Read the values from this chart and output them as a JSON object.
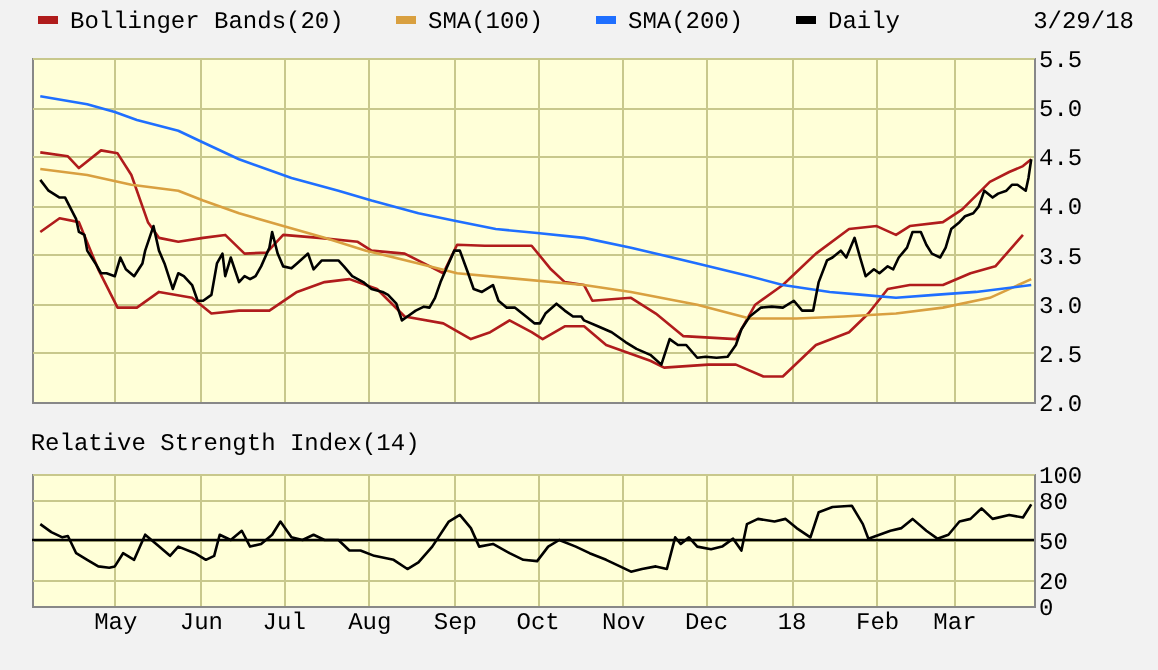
{
  "chart_data": [
    {
      "type": "line",
      "legend": "top",
      "grid": true,
      "tick_labels": "y",
      "annotations": [
        "3/29/18"
      ],
      "xlim": [
        "2017-04-01",
        "2018-03-30"
      ],
      "xticks": [
        {
          "value": "2017-05-01",
          "label": null
        },
        {
          "value": "2017-06-01",
          "label": null
        },
        {
          "value": "2017-07-01",
          "label": null
        },
        {
          "value": "2017-08-01",
          "label": null
        },
        {
          "value": "2017-09-01",
          "label": null
        },
        {
          "value": "2017-10-01",
          "label": null
        },
        {
          "value": "2017-11-01",
          "label": null
        },
        {
          "value": "2017-12-01",
          "label": null
        },
        {
          "value": "2018-01-01",
          "label": null
        },
        {
          "value": "2018-02-01",
          "label": null
        },
        {
          "value": "2018-03-01",
          "label": null
        }
      ],
      "ylim": [
        2,
        5.5
      ],
      "yticks": [
        {
          "value": 2,
          "label": "2.0"
        },
        2.5,
        {
          "value": 3,
          "label": "3.0"
        },
        3.5,
        {
          "value": 4,
          "label": "4.0"
        },
        4.5,
        {
          "value": 5,
          "label": "5.0"
        },
        5.5
      ],
      "series": [
        {
          "name": "Bollinger Bands(20)",
          "color": "#b01c1c",
          "x": [
            "2017-04-04",
            "2017-04-14",
            "2017-04-18",
            "2017-04-26",
            "2017-05-02",
            "2017-05-07",
            "2017-05-13",
            "2017-05-17",
            "2017-05-24",
            "2017-06-02",
            "2017-06-10",
            "2017-06-17",
            "2017-06-25",
            "2017-07-01",
            "2017-07-14",
            "2017-07-28",
            "2017-08-02",
            "2017-08-14",
            "2017-08-21",
            "2017-08-28",
            "2017-09-02",
            "2017-09-12",
            "2017-09-29",
            "2017-10-06",
            "2017-10-11",
            "2017-10-18",
            "2017-10-21",
            "2017-11-04",
            "2017-11-13",
            "2017-11-23",
            "2017-12-12",
            "2017-12-19",
            "2017-12-29",
            "2018-01-10",
            "2018-01-22",
            "2018-02-01",
            "2018-02-08",
            "2018-02-13",
            "2018-02-25",
            "2018-03-04",
            "2018-03-14",
            "2018-03-21",
            "2018-03-26",
            "2018-03-29"
          ],
          "values": [
            4.54,
            4.5,
            4.38,
            4.56,
            4.53,
            4.31,
            3.83,
            3.67,
            3.63,
            3.67,
            3.7,
            3.51,
            3.52,
            3.7,
            3.67,
            3.63,
            3.54,
            3.51,
            3.41,
            3.31,
            3.6,
            3.59,
            3.59,
            3.35,
            3.22,
            3.19,
            3.03,
            3.06,
            2.9,
            2.67,
            2.64,
            2.99,
            3.19,
            3.51,
            3.76,
            3.79,
            3.7,
            3.79,
            3.83,
            3.96,
            4.24,
            4.34,
            4.4,
            4.47
          ]
        },
        {
          "color": "#b01c1c",
          "x": [
            "2017-04-04",
            "2017-04-11",
            "2017-04-18",
            "2017-04-25",
            "2017-05-02",
            "2017-05-09",
            "2017-05-17",
            "2017-05-29",
            "2017-06-05",
            "2017-06-15",
            "2017-06-26",
            "2017-07-06",
            "2017-07-16",
            "2017-07-25",
            "2017-08-04",
            "2017-08-14",
            "2017-08-28",
            "2017-09-07",
            "2017-09-14",
            "2017-09-21",
            "2017-09-29",
            "2017-10-03",
            "2017-10-11",
            "2017-10-18",
            "2017-10-26",
            "2017-11-11",
            "2017-11-16",
            "2017-12-02",
            "2017-12-12",
            "2017-12-22",
            "2017-12-29",
            "2018-01-10",
            "2018-01-22",
            "2018-01-29",
            "2018-02-05",
            "2018-02-13",
            "2018-02-25",
            "2018-03-07",
            "2018-03-16",
            "2018-03-26"
          ],
          "values": [
            3.73,
            3.87,
            3.83,
            3.35,
            2.96,
            2.96,
            3.12,
            3.06,
            2.9,
            2.93,
            2.93,
            3.12,
            3.22,
            3.25,
            3.15,
            2.87,
            2.8,
            2.64,
            2.71,
            2.83,
            2.71,
            2.64,
            2.77,
            2.77,
            2.58,
            2.42,
            2.35,
            2.38,
            2.38,
            2.26,
            2.26,
            2.58,
            2.71,
            2.9,
            3.15,
            3.19,
            3.19,
            3.31,
            3.38,
            3.7
          ]
        },
        {
          "name": "SMA(100)",
          "color": "#d9a040",
          "x": [
            "2017-04-04",
            "2017-04-21",
            "2017-05-07",
            "2017-05-24",
            "2017-06-02",
            "2017-06-15",
            "2017-07-01",
            "2017-07-16",
            "2017-07-31",
            "2017-08-19",
            "2017-09-02",
            "2017-09-21",
            "2017-10-18",
            "2017-11-04",
            "2017-11-28",
            "2017-12-17",
            "2018-01-03",
            "2018-01-20",
            "2018-02-08",
            "2018-02-25",
            "2018-03-14",
            "2018-03-29"
          ],
          "values": [
            4.37,
            4.31,
            4.21,
            4.15,
            4.05,
            3.92,
            3.79,
            3.67,
            3.54,
            3.41,
            3.31,
            3.26,
            3.19,
            3.12,
            2.99,
            2.85,
            2.85,
            2.87,
            2.9,
            2.96,
            3.06,
            3.25
          ]
        },
        {
          "name": "SMA(200)",
          "color": "#1f6fff",
          "x": [
            "2017-04-04",
            "2017-04-21",
            "2017-05-01",
            "2017-05-09",
            "2017-05-24",
            "2017-06-02",
            "2017-06-15",
            "2017-07-04",
            "2017-07-21",
            "2017-08-02",
            "2017-08-19",
            "2017-09-02",
            "2017-09-16",
            "2017-10-01",
            "2017-10-18",
            "2017-11-04",
            "2017-11-28",
            "2017-12-17",
            "2017-12-29",
            "2018-01-15",
            "2018-01-27",
            "2018-02-08",
            "2018-02-22",
            "2018-03-09",
            "2018-03-29"
          ],
          "values": [
            5.11,
            5.03,
            4.95,
            4.87,
            4.76,
            4.64,
            4.47,
            4.28,
            4.15,
            4.05,
            3.92,
            3.84,
            3.76,
            3.72,
            3.67,
            3.57,
            3.41,
            3.28,
            3.19,
            3.12,
            3.09,
            3.06,
            3.09,
            3.12,
            3.19
          ]
        },
        {
          "name": "Daily",
          "color": "#000000",
          "x": [
            "2017-04-04",
            "2017-04-07",
            "2017-04-11",
            "2017-04-13",
            "2017-04-17",
            "2017-04-18",
            "2017-04-20",
            "2017-04-21",
            "2017-04-24",
            "2017-04-26",
            "2017-04-28",
            "2017-05-01",
            "2017-05-03",
            "2017-05-05",
            "2017-05-08",
            "2017-05-11",
            "2017-05-12",
            "2017-05-15",
            "2017-05-17",
            "2017-05-19",
            "2017-05-22",
            "2017-05-24",
            "2017-05-26",
            "2017-05-29",
            "2017-05-31",
            "2017-06-02",
            "2017-06-05",
            "2017-06-07",
            "2017-06-09",
            "2017-06-10",
            "2017-06-12",
            "2017-06-15",
            "2017-06-17",
            "2017-06-19",
            "2017-06-21",
            "2017-06-23",
            "2017-06-26",
            "2017-06-27",
            "2017-06-29",
            "2017-07-01",
            "2017-07-04",
            "2017-07-06",
            "2017-07-10",
            "2017-07-12",
            "2017-07-15",
            "2017-07-18",
            "2017-07-21",
            "2017-07-23",
            "2017-07-26",
            "2017-07-30",
            "2017-08-02",
            "2017-08-06",
            "2017-08-08",
            "2017-08-11",
            "2017-08-13",
            "2017-08-15",
            "2017-08-18",
            "2017-08-21",
            "2017-08-23",
            "2017-08-25",
            "2017-08-27",
            "2017-08-29",
            "2017-09-01",
            "2017-09-03",
            "2017-09-06",
            "2017-09-08",
            "2017-09-11",
            "2017-09-15",
            "2017-09-17",
            "2017-09-20",
            "2017-09-23",
            "2017-09-27",
            "2017-09-30",
            "2017-10-02",
            "2017-10-04",
            "2017-10-08",
            "2017-10-11",
            "2017-10-14",
            "2017-10-17",
            "2017-10-18",
            "2017-10-23",
            "2017-10-28",
            "2017-11-02",
            "2017-11-06",
            "2017-11-11",
            "2017-11-15",
            "2017-11-18",
            "2017-11-21",
            "2017-11-24",
            "2017-11-28",
            "2017-12-01",
            "2017-12-05",
            "2017-12-09",
            "2017-12-12",
            "2017-12-14",
            "2017-12-17",
            "2017-12-21",
            "2017-12-25",
            "2017-12-29",
            "2018-01-02",
            "2018-01-05",
            "2018-01-09",
            "2018-01-11",
            "2018-01-14",
            "2018-01-16",
            "2018-01-19",
            "2018-01-21",
            "2018-01-24",
            "2018-01-26",
            "2018-01-28",
            "2018-01-31",
            "2018-02-02",
            "2018-02-05",
            "2018-02-07",
            "2018-02-09",
            "2018-02-12",
            "2018-02-14",
            "2018-02-17",
            "2018-02-19",
            "2018-02-21",
            "2018-02-24",
            "2018-02-26",
            "2018-02-28",
            "2018-03-03",
            "2018-03-05",
            "2018-03-08",
            "2018-03-10",
            "2018-03-12",
            "2018-03-15",
            "2018-03-17",
            "2018-03-20",
            "2018-03-22",
            "2018-03-24",
            "2018-03-27",
            "2018-03-28",
            "2018-03-29"
          ],
          "values": [
            4.26,
            4.15,
            4.08,
            4.08,
            3.86,
            3.73,
            3.7,
            3.54,
            3.41,
            3.31,
            3.31,
            3.28,
            3.47,
            3.35,
            3.28,
            3.41,
            3.54,
            3.79,
            3.54,
            3.41,
            3.15,
            3.31,
            3.28,
            3.19,
            3.03,
            3.03,
            3.09,
            3.41,
            3.51,
            3.28,
            3.47,
            3.22,
            3.28,
            3.25,
            3.28,
            3.38,
            3.57,
            3.73,
            3.51,
            3.38,
            3.36,
            3.41,
            3.51,
            3.35,
            3.44,
            3.44,
            3.44,
            3.38,
            3.28,
            3.22,
            3.15,
            3.12,
            3.09,
            3.0,
            2.83,
            2.87,
            2.93,
            2.97,
            2.96,
            3.06,
            3.22,
            3.35,
            3.54,
            3.54,
            3.31,
            3.15,
            3.12,
            3.19,
            3.03,
            2.96,
            2.96,
            2.87,
            2.8,
            2.8,
            2.9,
            3.0,
            2.93,
            2.87,
            2.87,
            2.83,
            2.77,
            2.71,
            2.61,
            2.54,
            2.48,
            2.38,
            2.64,
            2.58,
            2.58,
            2.45,
            2.46,
            2.45,
            2.46,
            2.58,
            2.74,
            2.87,
            2.96,
            2.97,
            2.96,
            3.03,
            2.93,
            2.93,
            3.22,
            3.44,
            3.47,
            3.54,
            3.47,
            3.67,
            3.47,
            3.28,
            3.35,
            3.31,
            3.38,
            3.35,
            3.47,
            3.57,
            3.73,
            3.73,
            3.6,
            3.51,
            3.47,
            3.57,
            3.76,
            3.83,
            3.89,
            3.92,
            3.99,
            4.15,
            4.08,
            4.12,
            4.15,
            4.21,
            4.21,
            4.15,
            4.28,
            4.47
          ]
        }
      ]
    },
    {
      "type": "line",
      "title": "Relative Strength Index(14)",
      "grid": true,
      "xlim": [
        "2017-04-01",
        "2018-03-30"
      ],
      "xticks": [
        {
          "value": "2017-05-01",
          "label": "May"
        },
        {
          "value": "2017-06-01",
          "label": "Jun"
        },
        {
          "value": "2017-07-01",
          "label": "Jul"
        },
        {
          "value": "2017-08-01",
          "label": "Aug"
        },
        {
          "value": "2017-09-01",
          "label": "Sep"
        },
        {
          "value": "2017-10-01",
          "label": "Oct"
        },
        {
          "value": "2017-11-01",
          "label": "Nov"
        },
        {
          "value": "2017-12-01",
          "label": "Dec"
        },
        {
          "value": "2018-01-01",
          "label": "18"
        },
        {
          "value": "2018-02-01",
          "label": "Feb"
        },
        {
          "value": "2018-03-01",
          "label": "Mar"
        }
      ],
      "ylim": [
        0,
        100
      ],
      "yticks": [
        0,
        20,
        50,
        80,
        100
      ],
      "ref_lines": [
        {
          "axis": "y",
          "value": 50,
          "color": "#000000"
        }
      ],
      "series": [
        {
          "color": "#000000",
          "x": [
            "2017-04-04",
            "2017-04-08",
            "2017-04-12",
            "2017-04-14",
            "2017-04-17",
            "2017-04-21",
            "2017-04-25",
            "2017-04-29",
            "2017-05-01",
            "2017-05-04",
            "2017-05-08",
            "2017-05-12",
            "2017-05-16",
            "2017-05-21",
            "2017-05-24",
            "2017-05-30",
            "2017-06-03",
            "2017-06-06",
            "2017-06-08",
            "2017-06-12",
            "2017-06-16",
            "2017-06-19",
            "2017-06-23",
            "2017-06-27",
            "2017-06-30",
            "2017-07-04",
            "2017-07-08",
            "2017-07-12",
            "2017-07-16",
            "2017-07-21",
            "2017-07-25",
            "2017-07-29",
            "2017-08-03",
            "2017-08-10",
            "2017-08-15",
            "2017-08-19",
            "2017-08-24",
            "2017-08-30",
            "2017-09-03",
            "2017-09-07",
            "2017-09-10",
            "2017-09-15",
            "2017-09-21",
            "2017-09-26",
            "2017-10-01",
            "2017-10-05",
            "2017-10-09",
            "2017-10-15",
            "2017-10-20",
            "2017-10-26",
            "2017-10-31",
            "2017-11-04",
            "2017-11-08",
            "2017-11-13",
            "2017-11-17",
            "2017-11-20",
            "2017-11-22",
            "2017-11-25",
            "2017-11-28",
            "2017-12-03",
            "2017-12-07",
            "2017-12-11",
            "2017-12-14",
            "2017-12-16",
            "2017-12-20",
            "2017-12-26",
            "2017-12-30",
            "2018-01-03",
            "2018-01-08",
            "2018-01-11",
            "2018-01-16",
            "2018-01-23",
            "2018-01-27",
            "2018-01-29",
            "2018-02-02",
            "2018-02-06",
            "2018-02-10",
            "2018-02-14",
            "2018-02-19",
            "2018-02-23",
            "2018-02-27",
            "2018-03-03",
            "2018-03-07",
            "2018-03-11",
            "2018-03-15",
            "2018-03-21",
            "2018-03-26",
            "2018-03-29"
          ],
          "values": [
            62,
            56,
            52,
            53,
            40,
            35,
            30,
            29,
            30,
            40,
            35,
            54,
            47,
            38,
            45,
            40,
            35,
            38,
            54,
            50,
            57,
            45,
            47,
            54,
            64,
            52,
            50,
            54,
            50,
            50,
            42,
            42,
            38,
            35,
            28,
            33,
            45,
            64,
            69,
            59,
            45,
            47,
            40,
            35,
            34,
            45,
            50,
            45,
            40,
            35,
            30,
            26,
            28,
            30,
            28,
            52,
            47,
            52,
            45,
            43,
            45,
            51,
            42,
            62,
            66,
            64,
            66,
            59,
            52,
            71,
            75,
            76,
            62,
            51,
            54,
            57,
            59,
            66,
            57,
            51,
            54,
            64,
            66,
            74,
            66,
            69,
            67,
            77
          ]
        }
      ]
    }
  ]
}
